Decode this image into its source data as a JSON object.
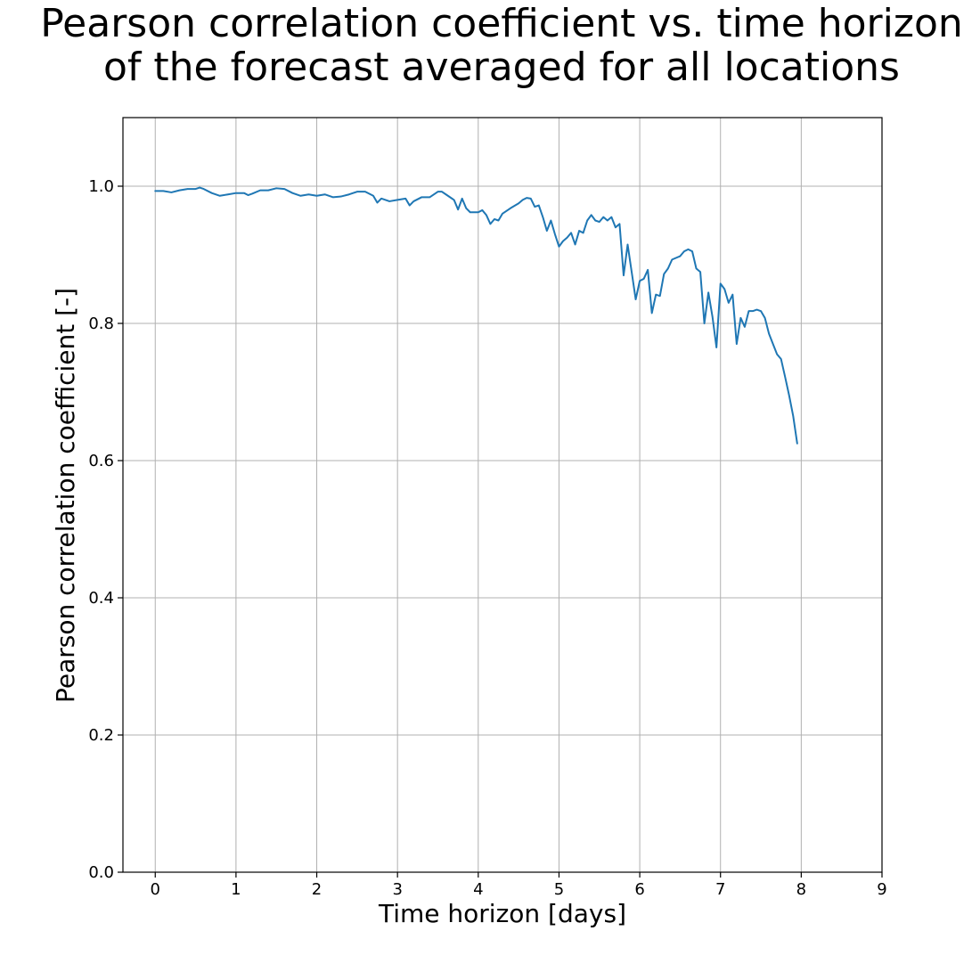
{
  "chart_data": {
    "type": "line",
    "title_lines": [
      "Pearson correlation coefficient vs. time horizon",
      "of the forecast averaged for all locations"
    ],
    "xlabel": "Time horizon [days]",
    "ylabel": "Pearson correlation coefficient [-]",
    "xlim": [
      -0.4,
      9
    ],
    "ylim": [
      0,
      1.1
    ],
    "xticks": [
      0,
      1,
      2,
      3,
      4,
      5,
      6,
      7,
      8,
      9
    ],
    "xtick_labels": [
      "0",
      "1",
      "2",
      "3",
      "4",
      "5",
      "6",
      "7",
      "8",
      "9"
    ],
    "yticks": [
      0,
      0.2,
      0.4,
      0.6,
      0.8,
      1.0
    ],
    "ytick_labels": [
      "0.0",
      "0.2",
      "0.4",
      "0.6",
      "0.8",
      "1.0"
    ],
    "grid": true,
    "series": [
      {
        "color": "#1f77b4",
        "x": [
          0.0,
          0.1,
          0.2,
          0.3,
          0.4,
          0.5,
          0.55,
          0.6,
          0.7,
          0.8,
          0.9,
          1.0,
          1.1,
          1.15,
          1.2,
          1.3,
          1.4,
          1.5,
          1.6,
          1.7,
          1.8,
          1.9,
          2.0,
          2.1,
          2.2,
          2.3,
          2.4,
          2.5,
          2.6,
          2.7,
          2.75,
          2.8,
          2.9,
          3.0,
          3.1,
          3.15,
          3.2,
          3.3,
          3.4,
          3.5,
          3.55,
          3.6,
          3.7,
          3.75,
          3.8,
          3.85,
          3.9,
          4.0,
          4.05,
          4.1,
          4.15,
          4.2,
          4.25,
          4.3,
          4.4,
          4.5,
          4.55,
          4.6,
          4.65,
          4.7,
          4.75,
          4.8,
          4.85,
          4.9,
          4.95,
          5.0,
          5.05,
          5.1,
          5.15,
          5.2,
          5.25,
          5.3,
          5.35,
          5.4,
          5.45,
          5.5,
          5.55,
          5.6,
          5.65,
          5.7,
          5.75,
          5.8,
          5.85,
          5.9,
          5.95,
          6.0,
          6.05,
          6.1,
          6.15,
          6.2,
          6.25,
          6.3,
          6.35,
          6.4,
          6.5,
          6.55,
          6.6,
          6.65,
          6.7,
          6.75,
          6.8,
          6.85,
          6.9,
          6.95,
          7.0,
          7.05,
          7.1,
          7.15,
          7.2,
          7.25,
          7.3,
          7.35,
          7.4,
          7.45,
          7.5,
          7.55,
          7.6,
          7.65,
          7.7,
          7.75,
          7.8,
          7.85,
          7.9,
          7.95
        ],
        "y": [
          0.993,
          0.993,
          0.991,
          0.994,
          0.996,
          0.996,
          0.998,
          0.996,
          0.99,
          0.986,
          0.988,
          0.99,
          0.99,
          0.987,
          0.989,
          0.994,
          0.994,
          0.997,
          0.996,
          0.99,
          0.986,
          0.988,
          0.986,
          0.988,
          0.984,
          0.985,
          0.988,
          0.992,
          0.992,
          0.986,
          0.976,
          0.982,
          0.978,
          0.98,
          0.982,
          0.972,
          0.978,
          0.984,
          0.984,
          0.992,
          0.992,
          0.988,
          0.98,
          0.966,
          0.982,
          0.968,
          0.962,
          0.962,
          0.965,
          0.958,
          0.945,
          0.952,
          0.95,
          0.96,
          0.968,
          0.975,
          0.98,
          0.983,
          0.982,
          0.97,
          0.972,
          0.955,
          0.935,
          0.95,
          0.93,
          0.912,
          0.92,
          0.925,
          0.932,
          0.915,
          0.935,
          0.932,
          0.95,
          0.958,
          0.95,
          0.948,
          0.955,
          0.95,
          0.955,
          0.94,
          0.945,
          0.87,
          0.915,
          0.875,
          0.835,
          0.862,
          0.865,
          0.878,
          0.815,
          0.842,
          0.84,
          0.872,
          0.88,
          0.893,
          0.898,
          0.905,
          0.908,
          0.905,
          0.88,
          0.875,
          0.8,
          0.845,
          0.81,
          0.765,
          0.858,
          0.85,
          0.83,
          0.842,
          0.77,
          0.808,
          0.795,
          0.818,
          0.818,
          0.82,
          0.818,
          0.808,
          0.785,
          0.77,
          0.755,
          0.748,
          0.722,
          0.695,
          0.665,
          0.625
        ]
      }
    ]
  }
}
